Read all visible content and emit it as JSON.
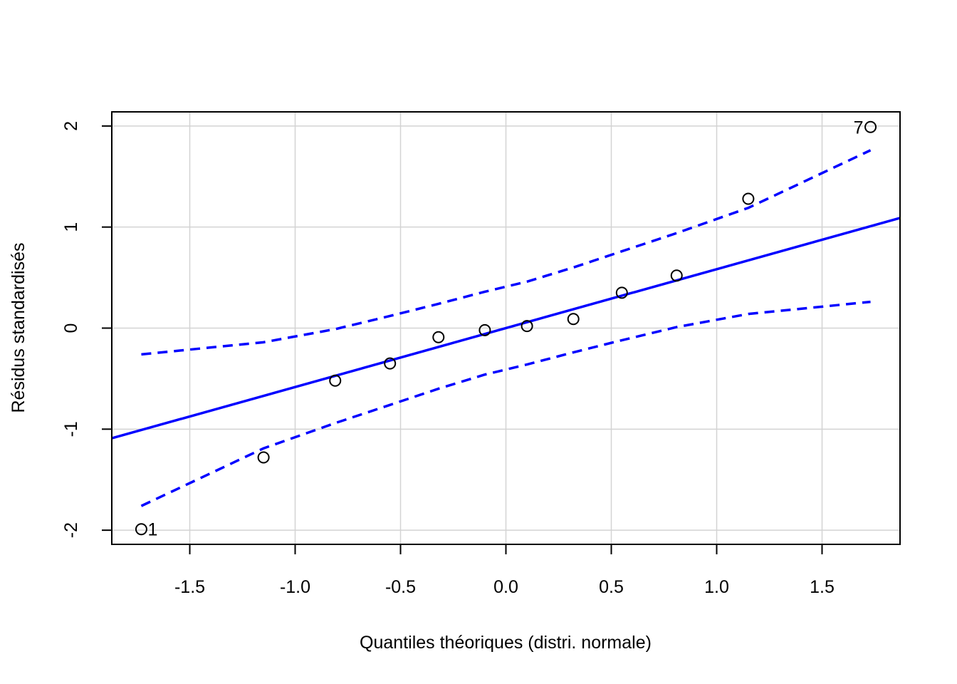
{
  "chart_data": {
    "type": "scatter",
    "title": "",
    "xlabel": "Quantiles théoriques (distri. normale)",
    "ylabel": "Résidus standardisés",
    "xlim": [
      -1.87,
      1.87
    ],
    "ylim": [
      -2.14,
      2.14
    ],
    "x_ticks": [
      {
        "value": -1.5,
        "label": "-1.5"
      },
      {
        "value": -1.0,
        "label": "-1.0"
      },
      {
        "value": -0.5,
        "label": "-0.5"
      },
      {
        "value": 0.0,
        "label": "0.0"
      },
      {
        "value": 0.5,
        "label": "0.5"
      },
      {
        "value": 1.0,
        "label": "1.0"
      },
      {
        "value": 1.5,
        "label": "1.5"
      }
    ],
    "y_ticks": [
      {
        "value": -2,
        "label": "-2"
      },
      {
        "value": -1,
        "label": "-1"
      },
      {
        "value": 0,
        "label": "0"
      },
      {
        "value": 1,
        "label": "1"
      },
      {
        "value": 2,
        "label": "2"
      }
    ],
    "grid": true,
    "colors": {
      "line": "#0000ff",
      "points": "#000000",
      "grid": "#d3d3d3",
      "frame": "#000000"
    },
    "points": [
      {
        "x": -1.73,
        "y": -1.99,
        "label": "1"
      },
      {
        "x": -1.15,
        "y": -1.28,
        "label": ""
      },
      {
        "x": -0.81,
        "y": -0.52,
        "label": ""
      },
      {
        "x": -0.55,
        "y": -0.35,
        "label": ""
      },
      {
        "x": -0.32,
        "y": -0.09,
        "label": ""
      },
      {
        "x": -0.1,
        "y": -0.02,
        "label": ""
      },
      {
        "x": 0.1,
        "y": 0.02,
        "label": ""
      },
      {
        "x": 0.32,
        "y": 0.09,
        "label": ""
      },
      {
        "x": 0.55,
        "y": 0.35,
        "label": ""
      },
      {
        "x": 0.81,
        "y": 0.52,
        "label": ""
      },
      {
        "x": 1.15,
        "y": 1.28,
        "label": ""
      },
      {
        "x": 1.73,
        "y": 1.99,
        "label": "7"
      }
    ],
    "reference_line": {
      "intercept": 0.0,
      "slope": 0.583
    },
    "envelope_upper": [
      {
        "x": -1.73,
        "y": -0.26
      },
      {
        "x": -1.15,
        "y": -0.14
      },
      {
        "x": -0.81,
        "y": -0.01
      },
      {
        "x": -0.55,
        "y": 0.12
      },
      {
        "x": -0.32,
        "y": 0.24
      },
      {
        "x": -0.1,
        "y": 0.36
      },
      {
        "x": 0.1,
        "y": 0.46
      },
      {
        "x": 0.32,
        "y": 0.6
      },
      {
        "x": 0.55,
        "y": 0.76
      },
      {
        "x": 0.81,
        "y": 0.94
      },
      {
        "x": 1.15,
        "y": 1.19
      },
      {
        "x": 1.73,
        "y": 1.76
      }
    ],
    "envelope_lower": [
      {
        "x": -1.73,
        "y": -1.76
      },
      {
        "x": -1.15,
        "y": -1.19
      },
      {
        "x": -0.81,
        "y": -0.94
      },
      {
        "x": -0.55,
        "y": -0.76
      },
      {
        "x": -0.32,
        "y": -0.6
      },
      {
        "x": -0.1,
        "y": -0.46
      },
      {
        "x": 0.1,
        "y": -0.36
      },
      {
        "x": 0.32,
        "y": -0.24
      },
      {
        "x": 0.55,
        "y": -0.12
      },
      {
        "x": 0.81,
        "y": 0.01
      },
      {
        "x": 1.15,
        "y": 0.14
      },
      {
        "x": 1.73,
        "y": 0.26
      }
    ]
  }
}
